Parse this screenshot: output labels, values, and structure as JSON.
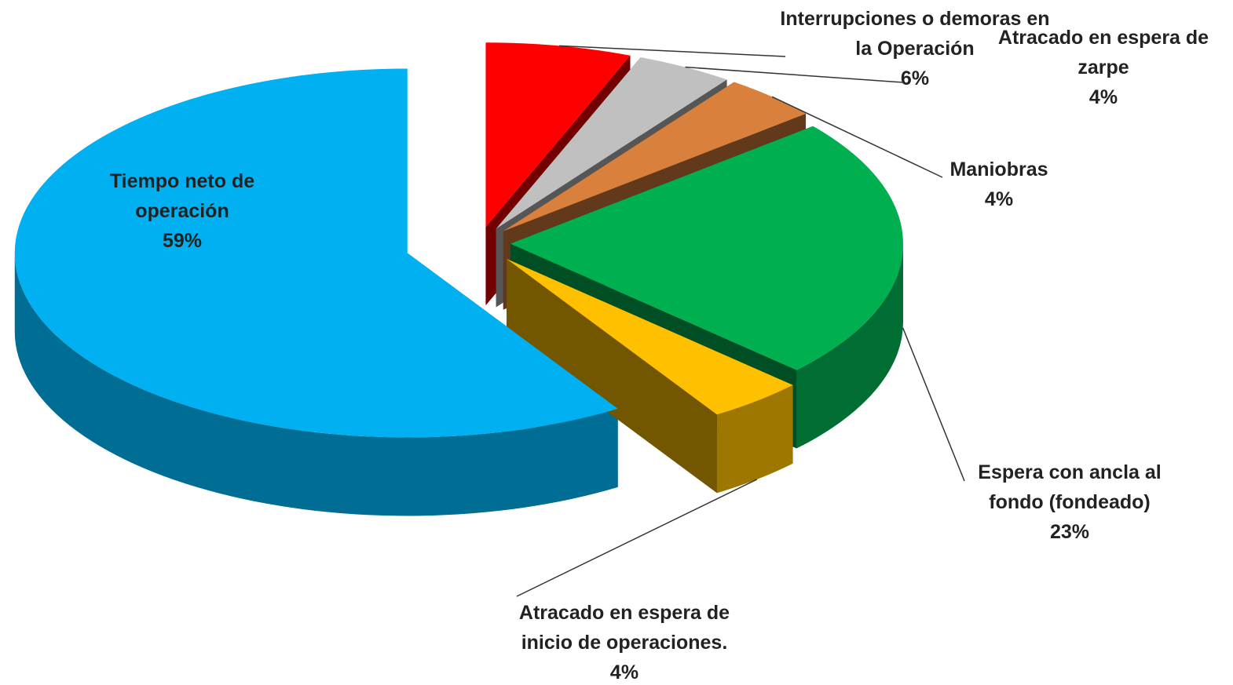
{
  "chart_data": {
    "type": "pie3d",
    "categories": [
      "Interrupciones o demoras en la Operación",
      "Atracado en espera de zarpe",
      "Maniobras",
      "Espera con ancla al fondo (fondeado)",
      "Atracado en espera de inicio de operaciones.",
      "Tiempo neto de operación"
    ],
    "values": [
      6,
      4,
      4,
      23,
      4,
      59
    ],
    "value_labels": [
      "6%",
      "4%",
      "4%",
      "23%",
      "4%",
      "59%"
    ],
    "colors": [
      "#ff0000",
      "#c0c0c0",
      "#d9803c",
      "#00b050",
      "#ffc000",
      "#00b0f0"
    ]
  }
}
